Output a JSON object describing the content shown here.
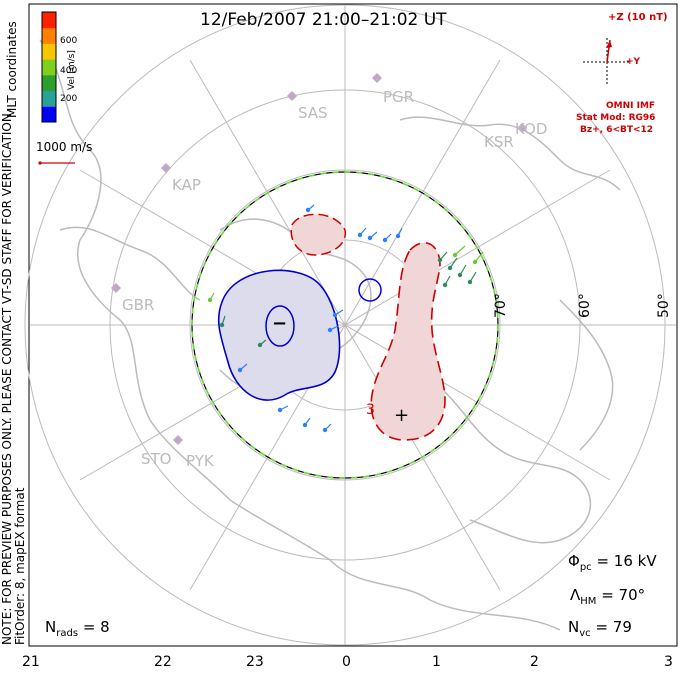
{
  "title": "12/Feb/2007 21:00–21:02 UT",
  "note_line1": "NOTE: FOR PREVIEW PURPOSES ONLY. PLEASE CONTACT VT-SD STAFF FOR VERIFICATION.",
  "note_line2": "FitOrder: 8, mapEX format",
  "mlt_label": "MLT coordinates",
  "colorbar": {
    "label": "Vel [m/s]",
    "ticks": [
      "600",
      "400",
      "200"
    ],
    "colors": [
      "#0000ff",
      "#2aa198",
      "#2ca02c",
      "#7fcf1f",
      "#f7c600",
      "#ff8000",
      "#ff2000"
    ]
  },
  "scale_vector": "1000 m/s",
  "imf": {
    "title": "+Z (10 nT)",
    "y_label": "+Y",
    "source": "OMNI IMF",
    "model": "Stat Mod: RG96",
    "bin": "Bz+, 6<BT<12"
  },
  "stations": [
    "SAS",
    "PGR",
    "KOD",
    "KSR",
    "KAP",
    "GBR",
    "STO",
    "PYK"
  ],
  "lat_labels": [
    "70°",
    "60°",
    "50°"
  ],
  "x_axis_ticks": [
    "21",
    "22",
    "23",
    "0",
    "1",
    "2",
    "3"
  ],
  "stats": {
    "phi_pc_sym": "Φ",
    "phi_pc_sub": "pc",
    "phi_pc_val": "= 16 kV",
    "lambda_sym": "Λ",
    "lambda_sub": "HM",
    "lambda_val": "= 70°",
    "nvc_sym": "N",
    "nvc_sub": "vc",
    "nvc_val": "= 79",
    "nrads_sym": "N",
    "nrads_sub": "rads",
    "nrads_val": "= 8"
  },
  "cell_minus": "−",
  "cell_plus": "+",
  "contour_3": "3",
  "colors": {
    "map_grey": "#bbbbbb",
    "negative_fill": "#dcdcec",
    "negative_line": "#0000cc",
    "positive_fill": "#f0d6d6",
    "positive_line": "#cc0000",
    "heppner_green": "#66dd33"
  }
}
